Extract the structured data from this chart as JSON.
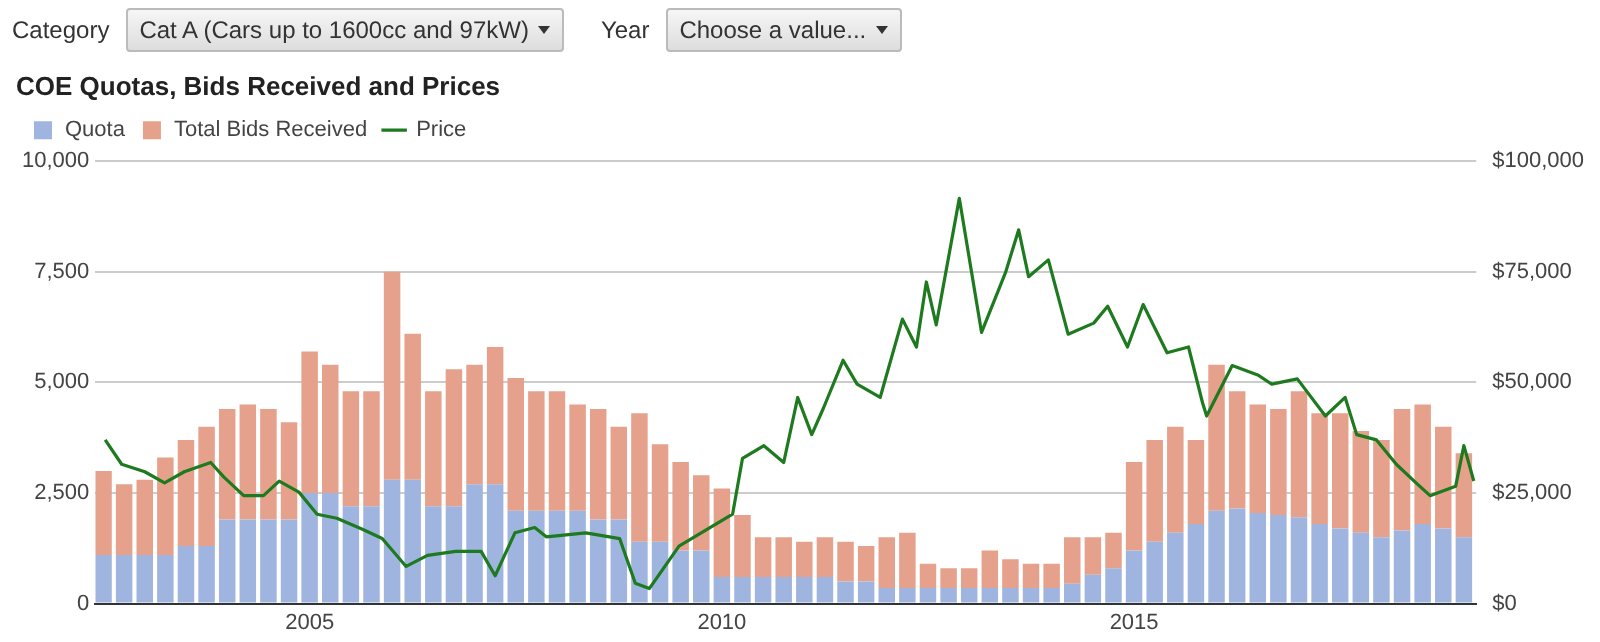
{
  "chart_data": {
    "type": "bar",
    "title": "COE Quotas, Bids Received and Prices",
    "annotations": [
      "Category",
      "Cat A (Cars up to 1600cc and 97kW)",
      "Year",
      "Choose a value..."
    ],
    "stacked": true,
    "grid": "y",
    "legend": "top left",
    "marker": "none",
    "line_style": "solid",
    "x": [
      2002.5,
      2002.75,
      2003,
      2003.25,
      2003.5,
      2003.75,
      2004,
      2004.25,
      2004.5,
      2004.75,
      2005,
      2005.25,
      2005.5,
      2005.75,
      2006,
      2006.25,
      2006.5,
      2006.75,
      2007,
      2007.25,
      2007.5,
      2007.75,
      2008,
      2008.25,
      2008.5,
      2008.75,
      2009,
      2009.25,
      2009.5,
      2009.75,
      2010,
      2010.25,
      2010.5,
      2010.75,
      2011,
      2011.25,
      2011.5,
      2011.75,
      2012,
      2012.25,
      2012.5,
      2012.75,
      2013,
      2013.25,
      2013.5,
      2013.75,
      2014,
      2014.25,
      2014.5,
      2014.75,
      2015,
      2015.25,
      2015.5,
      2015.75,
      2016,
      2016.25,
      2016.5,
      2016.75,
      2017,
      2017.25,
      2017.5,
      2017.75,
      2018,
      2018.25,
      2018.5,
      2018.75,
      2019
    ],
    "xlim": [
      2002.4,
      2019.15
    ],
    "xticks": [
      2005,
      2010,
      2015
    ],
    "ylim": [
      0,
      10000
    ],
    "yticks": [
      {
        "value": 0,
        "label": "0"
      },
      {
        "value": 2500,
        "label": "2,500"
      },
      {
        "value": 5000,
        "label": "5,000"
      },
      {
        "value": 7500,
        "label": "7,500"
      },
      {
        "value": 10000,
        "label": "10,000"
      }
    ],
    "y2lim": [
      0,
      100000
    ],
    "y2ticks": [
      {
        "value": 0,
        "label": "$0"
      },
      {
        "value": 25000,
        "label": "$25,000"
      },
      {
        "value": 50000,
        "label": "$50,000"
      },
      {
        "value": 75000,
        "label": "$75,000"
      },
      {
        "value": 100000,
        "label": "$100,000"
      }
    ],
    "series": [
      {
        "name": "Quota",
        "color": "#9fb5df",
        "values": [
          1100,
          1100,
          1100,
          1100,
          1300,
          1300,
          1900,
          1900,
          1900,
          1900,
          2500,
          2500,
          2200,
          2200,
          2800,
          2800,
          2200,
          2200,
          2700,
          2700,
          2100,
          2100,
          2100,
          2100,
          1900,
          1900,
          1400,
          1400,
          1200,
          1200,
          600,
          600,
          600,
          600,
          600,
          600,
          500,
          500,
          350,
          350,
          350,
          350,
          350,
          350,
          350,
          350,
          350,
          450,
          650,
          800,
          1200,
          1400,
          1600,
          1800,
          2100,
          2150,
          2050,
          2000,
          1950,
          1800,
          1700,
          1600,
          1500,
          1650,
          1800,
          1700,
          1500
        ]
      },
      {
        "name": "Total Bids Received",
        "color": "#e6a18c",
        "values": [
          1900,
          1600,
          1700,
          2200,
          2400,
          2700,
          2500,
          2600,
          2500,
          2200,
          3200,
          2900,
          2600,
          2600,
          4700,
          3300,
          2600,
          3100,
          2700,
          3100,
          3000,
          2700,
          2700,
          2400,
          2500,
          2100,
          2900,
          2200,
          2000,
          1700,
          2000,
          1400,
          900,
          900,
          800,
          900,
          900,
          800,
          1150,
          1250,
          550,
          450,
          450,
          850,
          650,
          550,
          550,
          1050,
          850,
          800,
          2000,
          2300,
          2400,
          1900,
          3300,
          2650,
          2450,
          2400,
          2850,
          2500,
          2600,
          2300,
          2200,
          2750,
          2700,
          2300,
          1900
        ]
      },
      {
        "name": "Price",
        "type": "line",
        "axis": "y2",
        "color": "#1e7a1e",
        "x": [
          2002.52,
          2002.72,
          2003,
          2003.24,
          2003.48,
          2003.8,
          2003.96,
          2004.2,
          2004.44,
          2004.63,
          2004.87,
          2005.09,
          2005.33,
          2005.64,
          2005.88,
          2006.17,
          2006.43,
          2006.77,
          2007.08,
          2007.25,
          2007.49,
          2007.73,
          2007.87,
          2008.35,
          2008.76,
          2008.95,
          2009.12,
          2009.48,
          2010.13,
          2010.25,
          2010.51,
          2010.75,
          2010.92,
          2011.09,
          2011.23,
          2011.47,
          2011.64,
          2011.92,
          2012.19,
          2012.36,
          2012.48,
          2012.6,
          2012.88,
          2013.15,
          2013.44,
          2013.6,
          2013.72,
          2013.96,
          2014.2,
          2014.51,
          2014.68,
          2014.92,
          2015.11,
          2015.4,
          2015.66,
          2015.83,
          2015.88,
          2016.19,
          2016.5,
          2016.67,
          2016.98,
          2017.32,
          2017.56,
          2017.7,
          2017.94,
          2018.18,
          2018.42,
          2018.59,
          2018.9,
          2019,
          2019.12
        ],
        "values": [
          37000,
          31500,
          29800,
          27300,
          29800,
          31900,
          28600,
          24400,
          24400,
          27700,
          25200,
          20200,
          19300,
          16800,
          14700,
          8400,
          10900,
          11800,
          11800,
          6300,
          16000,
          17200,
          15100,
          16000,
          14700,
          4600,
          3400,
          13000,
          20200,
          32800,
          35700,
          31900,
          46600,
          38200,
          44100,
          55000,
          49600,
          46600,
          64300,
          58000,
          72700,
          63000,
          91600,
          61300,
          74800,
          84500,
          73900,
          77700,
          60900,
          63400,
          67200,
          58000,
          67600,
          56700,
          58000,
          45400,
          42400,
          53800,
          51700,
          49600,
          50800,
          42400,
          46600,
          38200,
          37000,
          31500,
          27300,
          24400,
          26500,
          35700,
          27700
        ]
      }
    ]
  }
}
